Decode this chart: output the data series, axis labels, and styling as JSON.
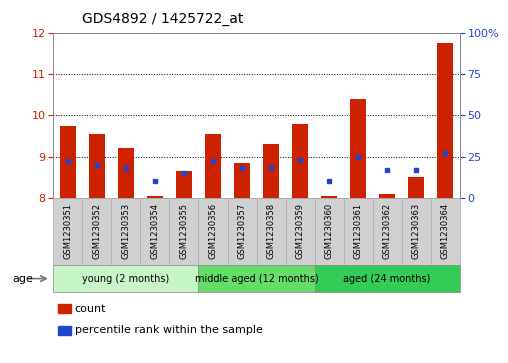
{
  "title": "GDS4892 / 1425722_at",
  "samples": [
    "GSM1230351",
    "GSM1230352",
    "GSM1230353",
    "GSM1230354",
    "GSM1230355",
    "GSM1230356",
    "GSM1230357",
    "GSM1230358",
    "GSM1230359",
    "GSM1230360",
    "GSM1230361",
    "GSM1230362",
    "GSM1230363",
    "GSM1230364"
  ],
  "count_values": [
    9.75,
    9.55,
    9.2,
    8.05,
    8.65,
    9.55,
    8.85,
    9.3,
    9.8,
    8.05,
    10.4,
    8.1,
    8.5,
    11.75
  ],
  "percentile_values": [
    22,
    20,
    18,
    10,
    15,
    22,
    18,
    18,
    23,
    10,
    25,
    17,
    17,
    27
  ],
  "ymin": 8,
  "ymax": 12,
  "yticks": [
    8,
    9,
    10,
    11,
    12
  ],
  "y2min": 0,
  "y2max": 100,
  "y2ticks": [
    0,
    25,
    50,
    75,
    100
  ],
  "bar_color": "#cc2200",
  "dot_color": "#2244cc",
  "bar_bottom": 8.0,
  "groups": [
    {
      "label": "young (2 months)",
      "start": 0,
      "end": 5,
      "color": "#c8f5c8"
    },
    {
      "label": "middle aged (12 months)",
      "start": 5,
      "end": 9,
      "color": "#66dd66"
    },
    {
      "label": "aged (24 months)",
      "start": 9,
      "end": 14,
      "color": "#33cc55"
    }
  ],
  "legend_count_label": "count",
  "legend_pct_label": "percentile rank within the sample",
  "age_label": "age",
  "bar_width": 0.55,
  "grid_color": "#000000",
  "background_color": "#ffffff",
  "xlabels_bg_color": "#d0d0d0",
  "title_fontsize": 10,
  "tick_label_fontsize": 8,
  "axis_label_fontsize": 8,
  "sample_label_fontsize": 6,
  "group_label_fontsize": 7,
  "legend_fontsize": 8
}
